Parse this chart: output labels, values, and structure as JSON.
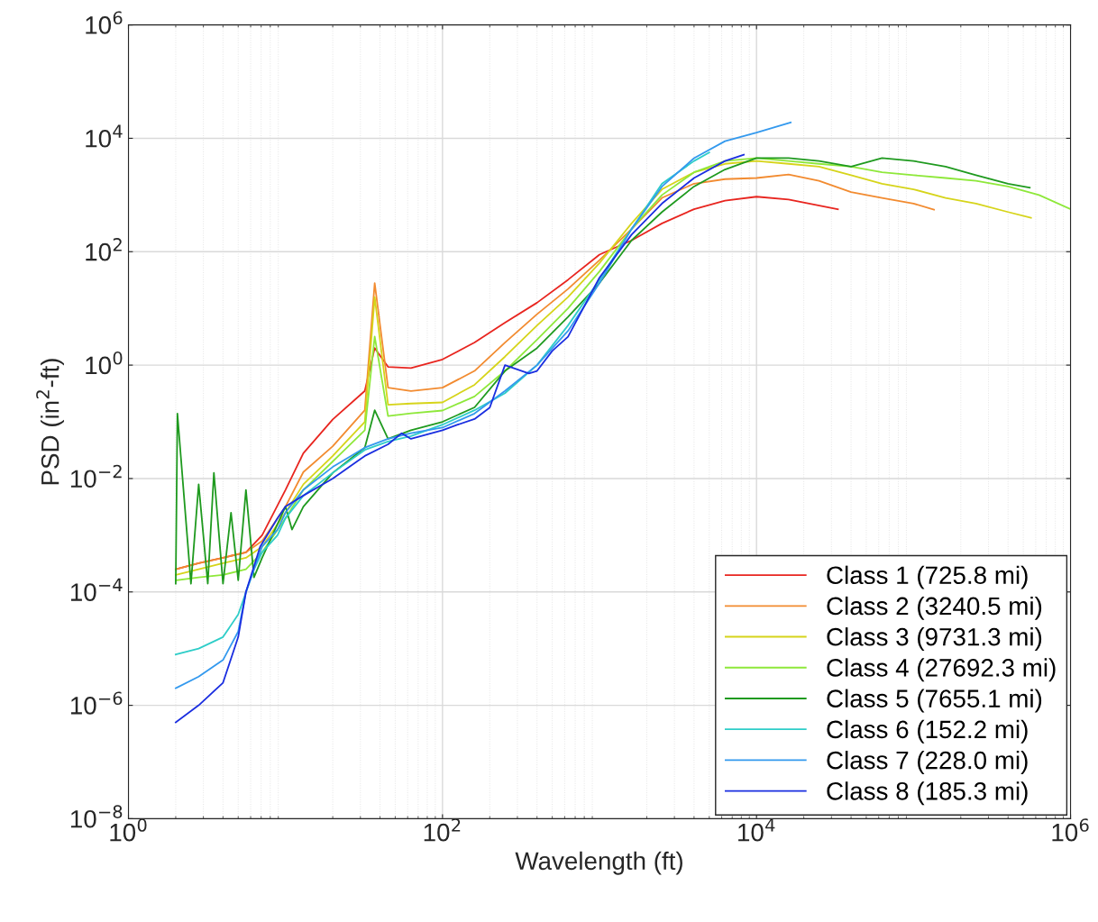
{
  "chart_data": {
    "type": "line",
    "xlabel": "Wavelength (ft)",
    "ylabel": "PSD (in$^{2}$-ft)",
    "log": "xy",
    "grid": true,
    "legend": "bottom right",
    "xlim": [
      1,
      1000000
    ],
    "ylim": [
      1e-08,
      1000000
    ],
    "xticks": [
      {
        "value": 1,
        "label": "10$^{0}$"
      },
      {
        "value": 100,
        "label": "10$^{2}$"
      },
      {
        "value": 10000,
        "label": "10$^{4}$"
      },
      {
        "value": 1000000,
        "label": "10$^{6}$"
      }
    ],
    "yticks": [
      {
        "value": 1e-08,
        "label": "10$^{−8}$"
      },
      {
        "value": 1e-06,
        "label": "10$^{−6}$"
      },
      {
        "value": 0.0001,
        "label": "10$^{−4}$"
      },
      {
        "value": 0.01,
        "label": "10$^{−2}$"
      },
      {
        "value": 1,
        "label": "10$^{0}$"
      },
      {
        "value": 100,
        "label": "10$^{2}$"
      },
      {
        "value": 10000,
        "label": "10$^{4}$"
      },
      {
        "value": 1000000,
        "label": "10$^{6}$"
      }
    ],
    "series": [
      {
        "name": "Class 1 (725.8 mi)",
        "color": "#e8251f",
        "x": [
          2,
          2.8,
          4,
          5.6,
          7.1,
          10,
          13,
          20,
          32,
          37,
          45,
          63,
          100,
          160,
          250,
          400,
          630,
          1000,
          1600,
          2500,
          4000,
          6300,
          10000,
          16000,
          33000
        ],
        "values": [
          0.00025,
          0.00032,
          0.0004,
          0.0005,
          0.001,
          0.0063,
          0.028,
          0.11,
          0.35,
          2.0,
          0.93,
          0.89,
          1.26,
          2.5,
          5.6,
          12.6,
          32,
          89,
          158,
          316,
          562,
          794,
          933,
          832,
          562
        ]
      },
      {
        "name": "Class 2 (3240.5 mi)",
        "color": "#f28b30",
        "x": [
          2,
          2.8,
          4,
          5.6,
          7.1,
          10,
          13,
          20,
          32,
          37,
          45,
          63,
          100,
          160,
          250,
          400,
          630,
          1000,
          1600,
          2500,
          4000,
          6300,
          10000,
          16000,
          25000,
          40000,
          63000,
          100000,
          135000
        ],
        "values": [
          0.00025,
          0.00032,
          0.0004,
          0.0005,
          0.00079,
          0.0032,
          0.013,
          0.037,
          0.16,
          28,
          0.4,
          0.35,
          0.4,
          0.79,
          2.5,
          7.9,
          22,
          71,
          251,
          891,
          1585,
          1905,
          1995,
          2291,
          1778,
          1122,
          891,
          708,
          550
        ]
      },
      {
        "name": "Class 3 (9731.3 mi)",
        "color": "#d6d41a",
        "x": [
          2,
          2.8,
          4,
          5.6,
          7.1,
          10,
          13,
          20,
          32,
          37,
          45,
          63,
          100,
          160,
          250,
          400,
          630,
          1000,
          1600,
          2500,
          4000,
          6300,
          10000,
          16000,
          25000,
          40000,
          63000,
          100000,
          160000,
          250000,
          400000,
          560000
        ],
        "values": [
          0.0002,
          0.00025,
          0.00032,
          0.0004,
          0.00063,
          0.0025,
          0.0079,
          0.025,
          0.1,
          15.8,
          0.2,
          0.21,
          0.22,
          0.45,
          1.41,
          5,
          15.8,
          63,
          316,
          1259,
          2512,
          3548,
          3981,
          3548,
          3162,
          2239,
          1585,
          1259,
          891,
          708,
          501,
          398
        ]
      },
      {
        "name": "Class 4 (27692.3 mi)",
        "color": "#8ee83a",
        "x": [
          2,
          2.8,
          4,
          5.6,
          7.1,
          10,
          13,
          20,
          32,
          37,
          45,
          63,
          100,
          160,
          250,
          400,
          630,
          1000,
          1600,
          2500,
          4000,
          6300,
          10000,
          16000,
          25000,
          40000,
          63000,
          100000,
          160000,
          250000,
          400000,
          630000,
          1000000
        ],
        "values": [
          0.00016,
          0.00018,
          0.0002,
          0.00025,
          0.0005,
          0.002,
          0.0063,
          0.02,
          0.071,
          3.2,
          0.126,
          0.141,
          0.158,
          0.28,
          0.79,
          2.8,
          10,
          45,
          251,
          1000,
          2512,
          3981,
          4467,
          3981,
          3548,
          3162,
          2512,
          2239,
          1995,
          1778,
          1413,
          1000,
          562
        ]
      },
      {
        "name": "Class 5 (7655.1 mi)",
        "color": "#1f9a1f",
        "x": [
          2,
          2.05,
          2.5,
          2.8,
          3.2,
          3.5,
          4,
          4.5,
          5,
          5.6,
          6.3,
          7.1,
          10,
          11,
          13,
          20,
          32,
          37,
          45,
          63,
          100,
          160,
          250,
          400,
          630,
          1000,
          1600,
          2500,
          4000,
          6300,
          10000,
          16000,
          25000,
          40000,
          63000,
          100000,
          160000,
          250000,
          400000,
          550000
        ],
        "values": [
          0.00014,
          0.14,
          0.00014,
          0.0079,
          0.00014,
          0.0126,
          0.00014,
          0.0025,
          0.00016,
          0.0063,
          0.00018,
          0.0004,
          0.0032,
          0.00126,
          0.0032,
          0.0126,
          0.035,
          0.16,
          0.05,
          0.071,
          0.1,
          0.18,
          0.79,
          2,
          7.1,
          28,
          158,
          501,
          1413,
          2818,
          4467,
          4467,
          3981,
          3162,
          4467,
          3981,
          3162,
          2239,
          1585,
          1349
        ]
      },
      {
        "name": "Class 6 (152.2 mi)",
        "color": "#2ecdc8",
        "x": [
          2,
          2.8,
          4,
          5,
          6.3,
          7.1,
          8.9,
          10,
          13,
          20,
          32,
          45,
          63,
          100,
          160,
          250,
          400,
          630,
          1000,
          1600,
          2500,
          4000,
          5000
        ],
        "values": [
          7.9e-06,
          1e-05,
          1.6e-05,
          4e-05,
          0.00025,
          0.0005,
          0.001,
          0.002,
          0.005,
          0.0126,
          0.032,
          0.045,
          0.056,
          0.089,
          0.16,
          0.32,
          1,
          5,
          32,
          251,
          1585,
          3981,
          5623
        ]
      },
      {
        "name": "Class 7 (228.0 mi)",
        "color": "#3399ee",
        "x": [
          2,
          2.8,
          4,
          5,
          5.6,
          7.1,
          8.9,
          10,
          13,
          20,
          32,
          45,
          63,
          100,
          160,
          250,
          400,
          630,
          1000,
          1600,
          2500,
          4000,
          6300,
          10000,
          16500
        ],
        "values": [
          2e-06,
          3.2e-06,
          6.3e-06,
          2e-05,
          0.0001,
          0.00063,
          0.00126,
          0.0025,
          0.0063,
          0.016,
          0.035,
          0.05,
          0.063,
          0.079,
          0.14,
          0.35,
          1,
          4,
          28,
          251,
          1413,
          4467,
          8913,
          12589,
          19055
        ]
      },
      {
        "name": "Class 8 (185.3 mi)",
        "color": "#1a2ee0",
        "x": [
          2,
          2.8,
          4,
          5,
          5.6,
          6.9,
          8.9,
          10,
          13,
          20,
          32,
          45,
          55,
          63,
          100,
          125,
          160,
          200,
          250,
          355,
          400,
          500,
          630,
          1000,
          1600,
          2500,
          4000,
          6300,
          8300
        ],
        "values": [
          5e-07,
          1e-06,
          2.5e-06,
          1.6e-05,
          0.0001,
          0.00063,
          0.002,
          0.0032,
          0.005,
          0.01,
          0.025,
          0.04,
          0.063,
          0.05,
          0.071,
          0.089,
          0.112,
          0.178,
          1,
          0.71,
          0.79,
          1.78,
          3.16,
          35,
          200,
          708,
          1995,
          3981,
          5129
        ]
      }
    ]
  }
}
